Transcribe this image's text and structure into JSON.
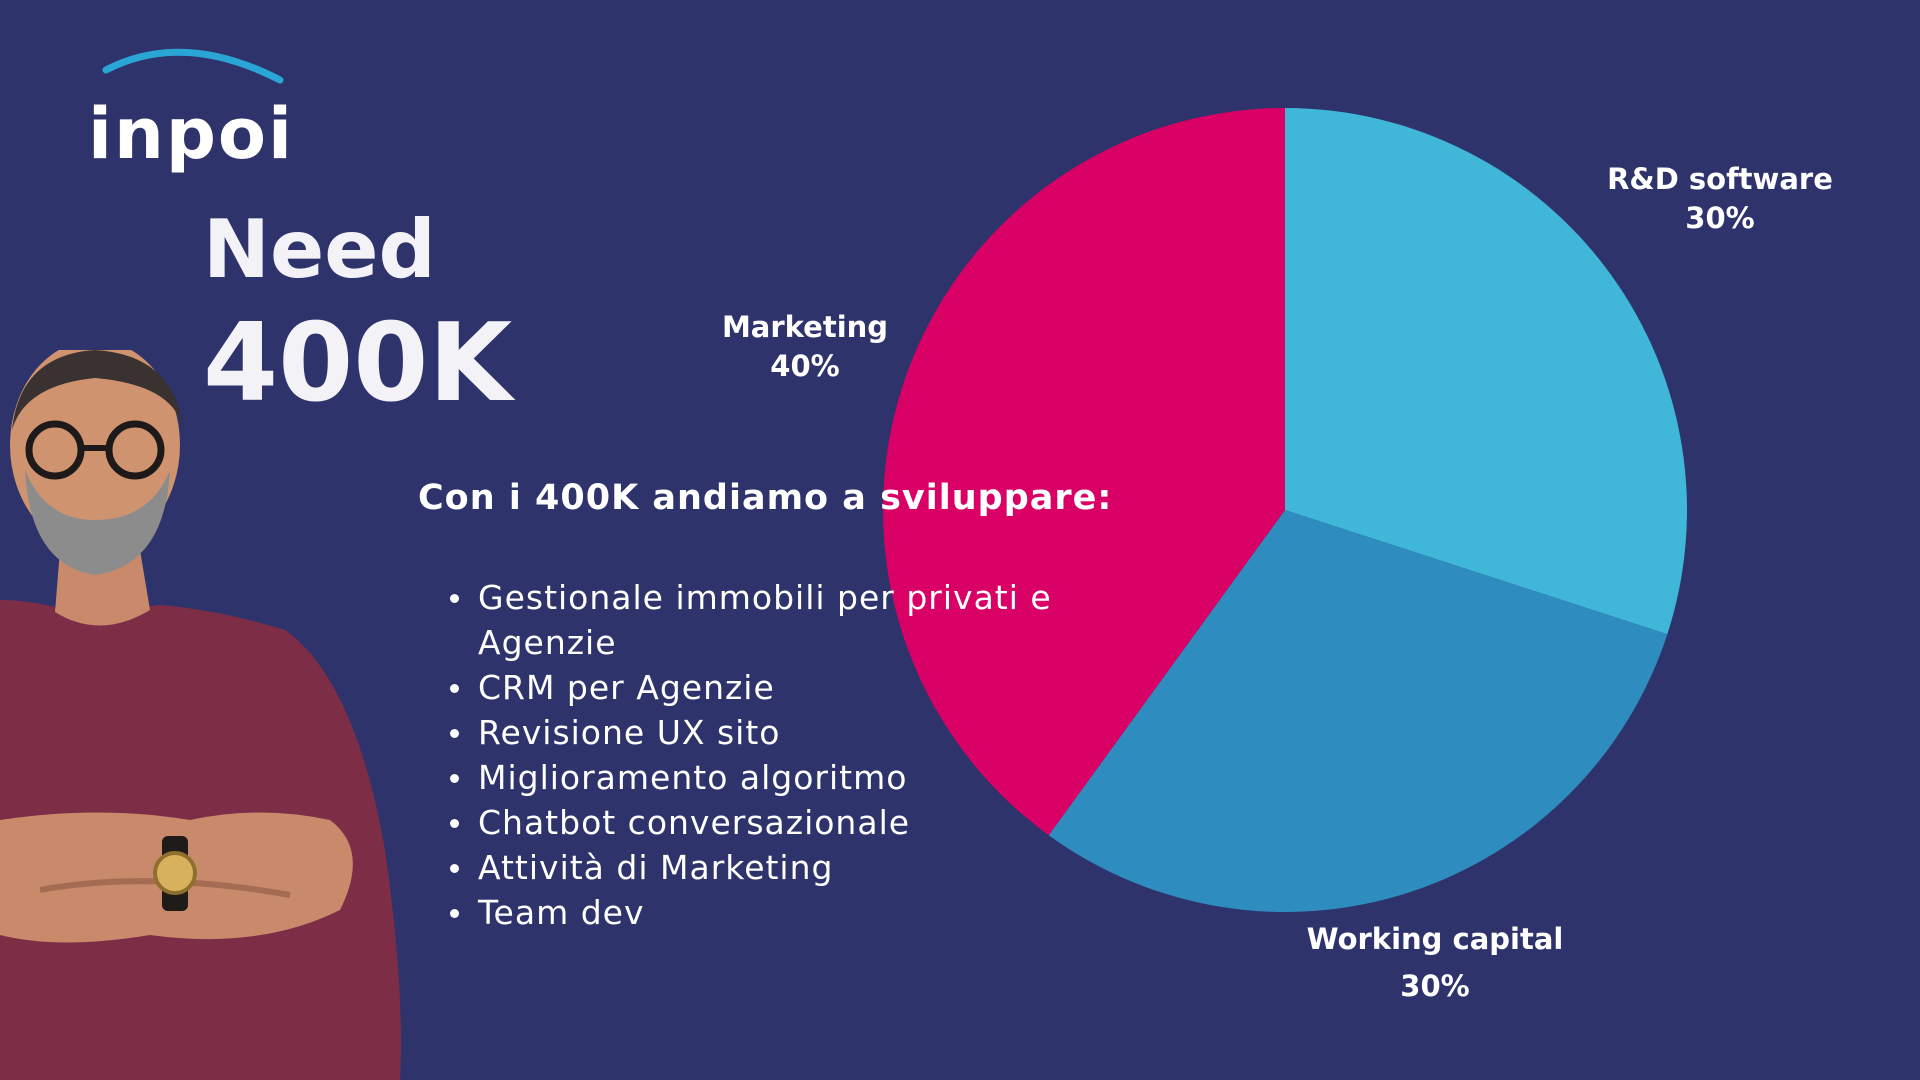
{
  "brand": {
    "logo_text": "inpoi",
    "logo_color": "#ffffff",
    "arc_color": "#2aa6d6"
  },
  "headline": {
    "line1": "Need",
    "line2": "400K"
  },
  "intro": "Con i 400K andiamo a sviluppare:",
  "bullets": [
    "Gestionale immobili per privati e Agenzie",
    "CRM per Agenzie",
    "Revisione UX sito",
    "Miglioramento algoritmo",
    "Chatbot conversazionale",
    "Attività di Marketing",
    "Team dev"
  ],
  "colors": {
    "background": "#2f336b",
    "marketing": "#d90066",
    "rd_software": "#40b6d8",
    "working_capital": "#2e8cbe"
  },
  "chart_data": {
    "type": "pie",
    "start": "12 o'clock, clockwise",
    "slices": [
      {
        "label": "R&D software",
        "value": 30,
        "value_label": "30%",
        "color": "#40b6d8"
      },
      {
        "label": "Working capital",
        "value": 30,
        "value_label": "30%",
        "color": "#2e8cbe"
      },
      {
        "label": "Marketing",
        "value": 40,
        "value_label": "40%",
        "color": "#d90066"
      }
    ]
  }
}
